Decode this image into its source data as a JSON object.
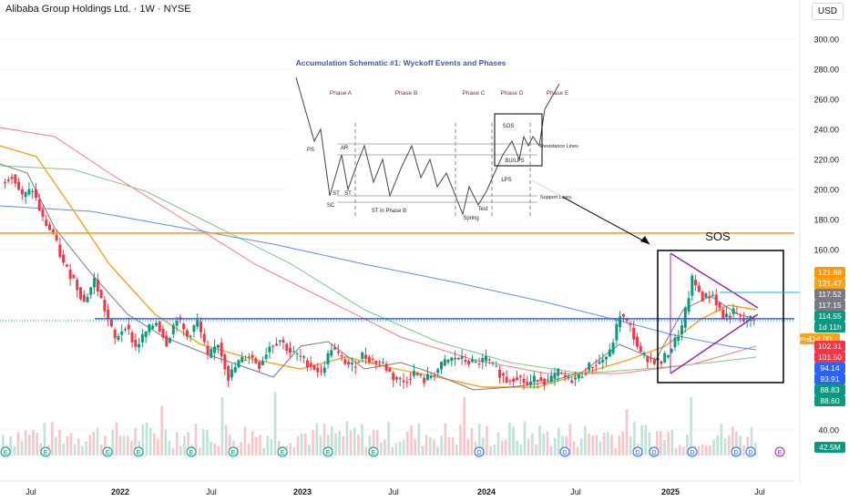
{
  "header": {
    "title": "Alibaba Group Holdings Ltd. · 1W · NYSE",
    "currency": "USD"
  },
  "colors": {
    "up": "#089981",
    "down": "#f23645",
    "ma_fast": "#787b86",
    "ma_mid": "#f7a21b",
    "ma_slow_red": "#f77c80",
    "ma_slow_green": "#81c784",
    "ma_blue": "#5b8def",
    "resistance": "#ff9800",
    "support": "#2962ff",
    "triangle": "#9c27b0",
    "cyan": "#00bcd4",
    "schematic_title": "#3b5ba8",
    "phase_label": "#7b2d3b"
  },
  "chart_data": {
    "type": "candlestick",
    "title": "Alibaba Group Holdings Ltd. · 1W · NYSE",
    "ylim": [
      34,
      310
    ],
    "y_ticks": [
      300,
      280,
      260,
      240,
      220,
      200,
      180,
      160,
      40
    ],
    "x_ticks": [
      "Jul",
      "2022",
      "Jul",
      "2023",
      "Jul",
      "2024",
      "Jul",
      "2025",
      "Jul"
    ],
    "price_close": [
      205,
      210,
      195,
      200,
      180,
      170,
      150,
      140,
      125,
      140,
      120,
      100,
      110,
      95,
      105,
      112,
      98,
      115,
      102,
      112,
      88,
      98,
      75,
      85,
      90,
      83,
      96,
      100,
      92,
      88,
      83,
      78,
      95,
      87,
      82,
      90,
      86,
      84,
      75,
      72,
      78,
      73,
      78,
      85,
      88,
      86,
      84,
      87,
      80,
      73,
      76,
      70,
      75,
      72,
      78,
      73,
      75,
      82,
      85,
      91,
      117,
      108,
      90,
      87,
      85,
      95,
      108,
      140,
      128,
      130,
      115,
      118,
      112,
      114
    ],
    "horizontal_levels": [
      {
        "name": "resistance",
        "value": 171
      },
      {
        "name": "support",
        "value": 114
      }
    ],
    "price_labels": [
      {
        "value": "121.88",
        "color": "#ff9800"
      },
      {
        "value": "121.47",
        "color": "#f7a21b"
      },
      {
        "value": "117.52",
        "color": "#787b86"
      },
      {
        "value": "117.15",
        "color": "#787b86"
      },
      {
        "value": "114.55",
        "color": "#089981"
      },
      {
        "value": "1d 11h",
        "color": "#089981"
      },
      {
        "value": "114.00",
        "color": "#f7a21b"
      },
      {
        "value": "102.31",
        "color": "#f23645"
      },
      {
        "value": "101.50",
        "color": "#f23645"
      },
      {
        "value": "94.14",
        "color": "#2962ff"
      },
      {
        "value": "93.91",
        "color": "#2962ff"
      },
      {
        "value": "88.83",
        "color": "#089981"
      },
      {
        "value": "88.60",
        "color": "#089981"
      },
      {
        "value": "42.5M",
        "color": "#089981"
      }
    ],
    "pre_tag": "Pre",
    "annotation": "SOS",
    "schematic": {
      "title": "Accumulation Schematic #1: Wyckoff Events and Phases",
      "phases": [
        "Phase A",
        "Phase B",
        "Phase C",
        "Phase D",
        "Phase E"
      ],
      "events": [
        "PS",
        "SC",
        "AR",
        "ST",
        "ST",
        "ST in Phase B",
        "Spring",
        "Test",
        "SOS",
        "BU/LPS",
        "LPS"
      ],
      "side_labels": [
        "Resistance Lines",
        "Support Lines"
      ]
    },
    "events_row": [
      "E",
      "E",
      "E",
      "E",
      "E",
      "E",
      "E",
      "E",
      "E",
      "D",
      "D",
      "D",
      "D",
      "D",
      "D",
      "D",
      "E"
    ]
  }
}
